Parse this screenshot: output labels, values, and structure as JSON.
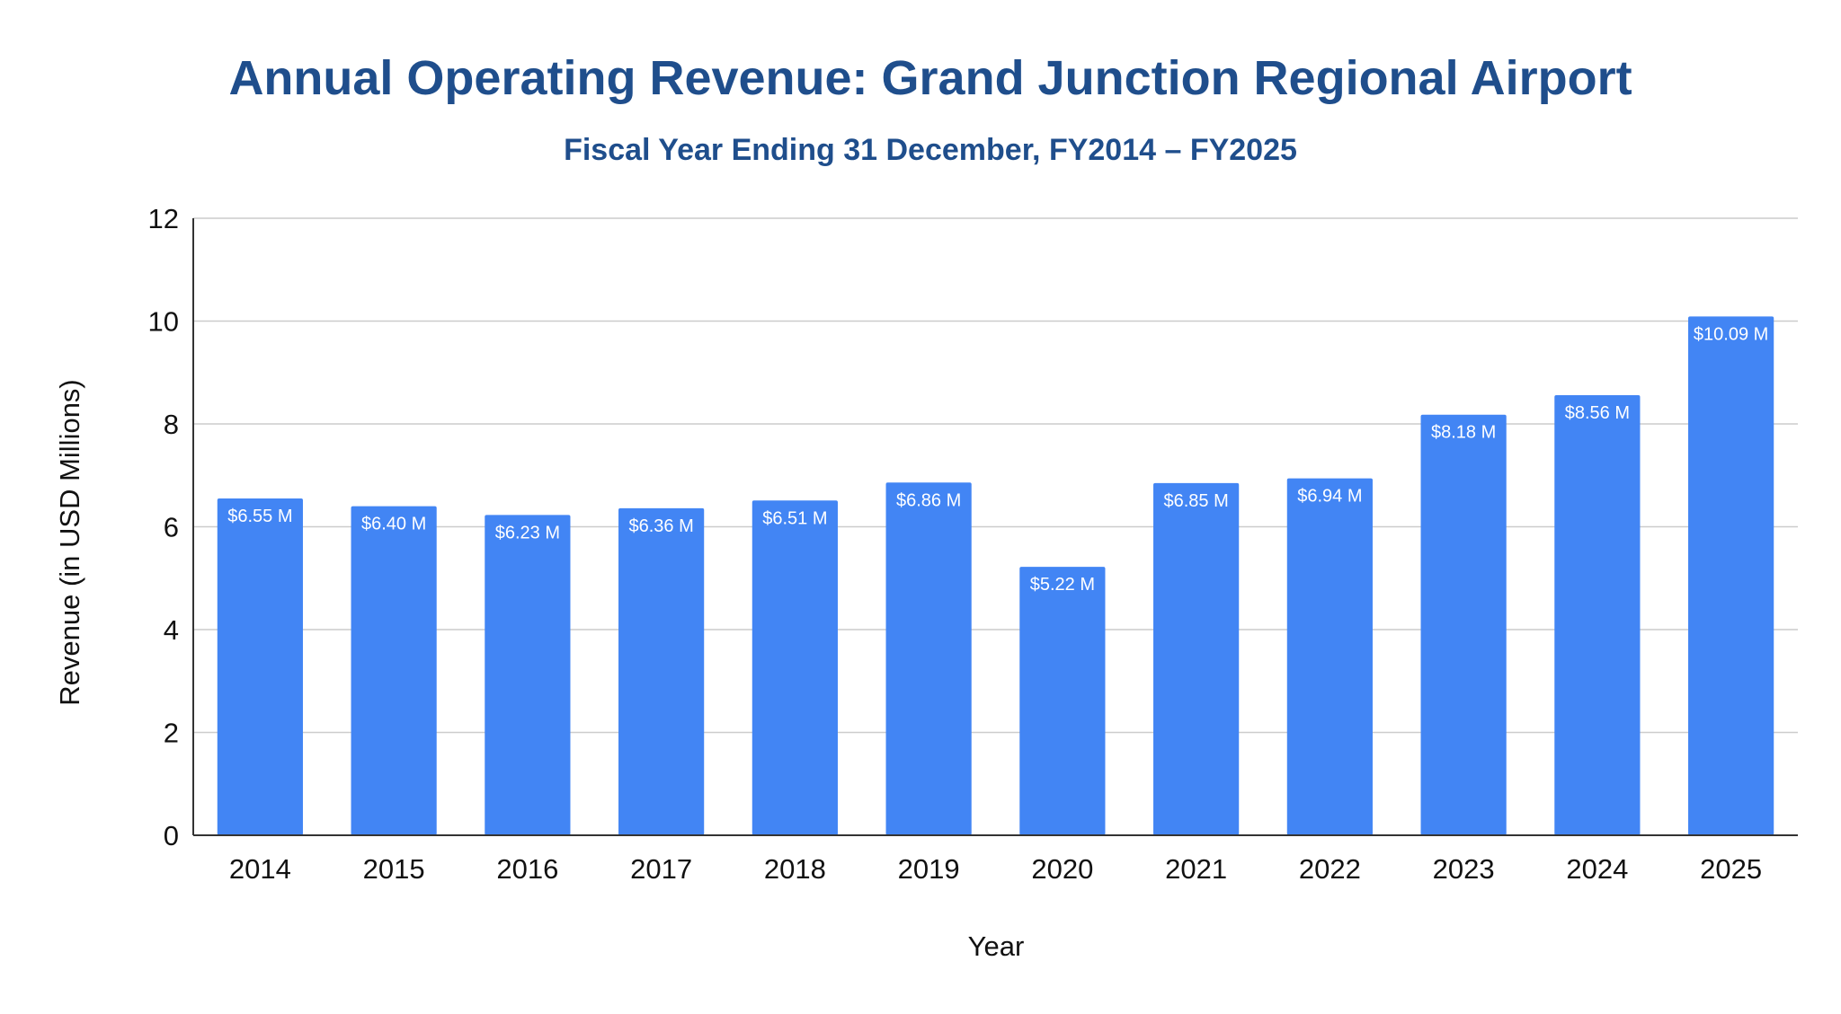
{
  "chart_data": {
    "type": "bar",
    "title": "Annual Operating Revenue: Grand Junction Regional Airport",
    "subtitle": "Fiscal Year Ending 31 December, FY2014 – FY2025",
    "xlabel": "Year",
    "ylabel": "Revenue (in USD Millions)",
    "ylim": [
      0,
      12
    ],
    "yticks": [
      "0",
      "2",
      "4",
      "6",
      "8",
      "10",
      "12"
    ],
    "grid": true,
    "legend": "none",
    "categories": [
      "2014",
      "2015",
      "2016",
      "2017",
      "2018",
      "2019",
      "2020",
      "2021",
      "2022",
      "2023",
      "2024",
      "2025"
    ],
    "values": [
      6.55,
      6.4,
      6.23,
      6.36,
      6.51,
      6.86,
      5.22,
      6.85,
      6.94,
      8.18,
      8.56,
      10.09
    ],
    "data_labels": [
      "$6.55 M",
      "$6.40 M",
      "$6.23 M",
      "$6.36 M",
      "$6.51 M",
      "$6.86 M",
      "$5.22 M",
      "$6.85 M",
      "$6.94 M",
      "$8.18 M",
      "$8.56 M",
      "$10.09 M"
    ],
    "colors": {
      "bar": "#4285F4",
      "title": "#1F4E8C",
      "grid": "#CCCCCC",
      "axis": "#333333",
      "text": "#111111",
      "data_label": "#FFFFFF"
    }
  }
}
